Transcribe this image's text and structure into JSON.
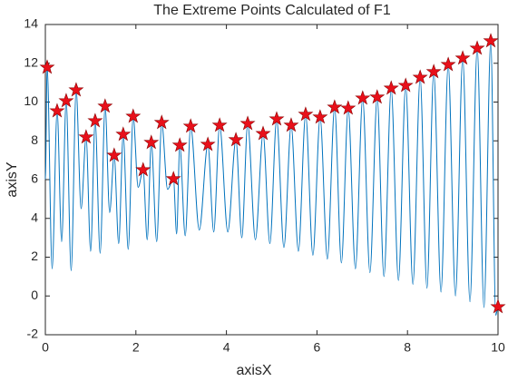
{
  "chart_data": {
    "type": "line",
    "title": "The Extreme Points Calculated of F1",
    "xlabel": "axisX",
    "ylabel": "axisY",
    "xlim": [
      0,
      10
    ],
    "xticks": [
      0,
      2,
      4,
      6,
      8,
      10
    ],
    "ylim": [
      -2,
      14
    ],
    "yticks": [
      -2,
      0,
      2,
      4,
      6,
      8,
      10,
      12,
      14
    ],
    "line": {
      "color": "#0072bd",
      "x": [
        0,
        0.04,
        0.15,
        0.26,
        0.36,
        0.46,
        0.57,
        0.68,
        0.79,
        0.9,
        1.0,
        1.1,
        1.21,
        1.32,
        1.42,
        1.52,
        1.62,
        1.72,
        1.83,
        1.94,
        2.05,
        2.16,
        2.25,
        2.34,
        2.46,
        2.57,
        2.7,
        2.83,
        2.9,
        2.97,
        3.09,
        3.21,
        3.4,
        3.59,
        3.72,
        3.85,
        4.03,
        4.21,
        4.34,
        4.47,
        4.64,
        4.81,
        4.96,
        5.11,
        5.27,
        5.43,
        5.59,
        5.75,
        5.91,
        6.07,
        6.23,
        6.39,
        6.54,
        6.69,
        6.85,
        7.01,
        7.17,
        7.33,
        7.48,
        7.64,
        7.8,
        7.96,
        8.12,
        8.28,
        8.43,
        8.58,
        8.74,
        8.9,
        9.06,
        9.22,
        9.38,
        9.54,
        9.69,
        9.84,
        9.95,
        10.0
      ],
      "values": [
        6,
        11.79,
        1.4,
        9.54,
        2.8,
        10.06,
        1.3,
        10.62,
        4.5,
        8.19,
        2.3,
        9.03,
        2.2,
        9.78,
        4.3,
        7.25,
        2.7,
        8.33,
        2.4,
        9.26,
        5.6,
        6.5,
        2.9,
        7.91,
        2.8,
        8.94,
        5.5,
        6.04,
        3.2,
        7.77,
        3.1,
        8.75,
        3.4,
        7.81,
        3.3,
        8.8,
        3.3,
        8.05,
        3.0,
        8.89,
        2.9,
        8.37,
        2.7,
        9.12,
        2.5,
        8.8,
        2.3,
        9.36,
        2.1,
        9.22,
        1.9,
        9.73,
        1.7,
        9.68,
        1.4,
        10.2,
        1.2,
        10.25,
        1.0,
        10.71,
        0.8,
        10.85,
        0.6,
        11.27,
        0.4,
        11.56,
        0.2,
        11.93,
        0.0,
        12.26,
        -0.3,
        12.77,
        -0.6,
        13.15,
        -1.0,
        -0.56
      ]
    },
    "points": {
      "color": "#e8101a",
      "edgecolor": "#8b0000",
      "x": [
        0.04,
        0.26,
        0.46,
        0.68,
        0.9,
        1.1,
        1.32,
        1.52,
        1.72,
        1.94,
        2.16,
        2.34,
        2.57,
        2.83,
        2.97,
        3.21,
        3.59,
        3.85,
        4.21,
        4.47,
        4.81,
        5.11,
        5.43,
        5.75,
        6.07,
        6.39,
        6.69,
        7.01,
        7.33,
        7.64,
        7.96,
        8.28,
        8.58,
        8.9,
        9.22,
        9.54,
        9.84,
        10.0
      ],
      "values": [
        11.79,
        9.54,
        10.06,
        10.62,
        8.19,
        9.03,
        9.78,
        7.25,
        8.33,
        9.26,
        6.5,
        7.91,
        8.94,
        6.04,
        7.77,
        8.75,
        7.81,
        8.8,
        8.05,
        8.89,
        8.37,
        9.12,
        8.8,
        9.36,
        9.22,
        9.73,
        9.68,
        10.2,
        10.25,
        10.71,
        10.85,
        11.27,
        11.56,
        11.93,
        12.26,
        12.77,
        13.15,
        -0.56
      ]
    }
  }
}
